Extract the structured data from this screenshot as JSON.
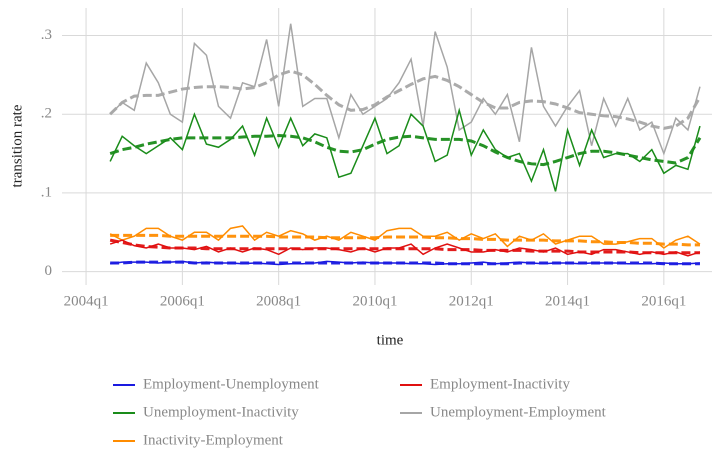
{
  "chart_data": {
    "type": "line",
    "x_label": "time",
    "y_label": "transition rate",
    "x": [
      2004.5,
      2004.75,
      2005,
      2005.25,
      2005.5,
      2005.75,
      2006,
      2006.25,
      2006.5,
      2006.75,
      2007,
      2007.25,
      2007.5,
      2007.75,
      2008,
      2008.25,
      2008.5,
      2008.75,
      2009,
      2009.25,
      2009.5,
      2009.75,
      2010,
      2010.25,
      2010.5,
      2010.75,
      2011,
      2011.25,
      2011.5,
      2011.75,
      2012,
      2012.25,
      2012.5,
      2012.75,
      2013,
      2013.25,
      2013.5,
      2013.75,
      2014,
      2014.25,
      2014.5,
      2014.75,
      2015,
      2015.25,
      2015.5,
      2015.75,
      2016,
      2016.25,
      2016.5,
      2016.75
    ],
    "xlim": [
      2003.5,
      2017
    ],
    "xticks": [
      {
        "value": 2004,
        "label": "2004q1"
      },
      {
        "value": 2006,
        "label": "2006q1"
      },
      {
        "value": 2008,
        "label": "2008q1"
      },
      {
        "value": 2010,
        "label": "2010q1"
      },
      {
        "value": 2012,
        "label": "2012q1"
      },
      {
        "value": 2014,
        "label": "2014q1"
      },
      {
        "value": 2016,
        "label": "2016q1"
      }
    ],
    "ylim": [
      -0.017,
      0.335
    ],
    "yticks": [
      0,
      {
        "value": 0.1,
        "label": ".1"
      },
      {
        "value": 0.2,
        "label": ".2"
      },
      {
        "value": 0.3,
        "label": ".3"
      }
    ],
    "grid": true,
    "legend": "bottom",
    "series": [
      {
        "name": "Employment-Unemployment",
        "color": "#1a1ae0",
        "values": [
          0.01,
          0.012,
          0.012,
          0.012,
          0.011,
          0.012,
          0.013,
          0.011,
          0.012,
          0.011,
          0.011,
          0.01,
          0.011,
          0.01,
          0.009,
          0.01,
          0.01,
          0.011,
          0.013,
          0.012,
          0.011,
          0.012,
          0.011,
          0.011,
          0.011,
          0.01,
          0.01,
          0.009,
          0.01,
          0.01,
          0.011,
          0.012,
          0.01,
          0.011,
          0.012,
          0.011,
          0.01,
          0.011,
          0.011,
          0.01,
          0.011,
          0.011,
          0.011,
          0.01,
          0.01,
          0.01,
          0.011,
          0.01,
          0.01,
          0.011
        ],
        "trend": [
          0.011,
          0.011,
          0.012,
          0.012,
          0.012,
          0.012,
          0.012,
          0.011,
          0.011,
          0.011,
          0.011,
          0.011,
          0.011,
          0.011,
          0.011,
          0.011,
          0.011,
          0.011,
          0.011,
          0.011,
          0.011,
          0.011,
          0.011,
          0.011,
          0.011,
          0.011,
          0.011,
          0.011,
          0.01,
          0.01,
          0.01,
          0.01,
          0.01,
          0.01,
          0.011,
          0.011,
          0.011,
          0.011,
          0.011,
          0.011,
          0.011,
          0.011,
          0.011,
          0.011,
          0.011,
          0.011,
          0.01,
          0.01,
          0.01,
          0.01
        ]
      },
      {
        "name": "Employment-Inactivity",
        "color": "#e01010",
        "values": [
          0.035,
          0.04,
          0.033,
          0.03,
          0.035,
          0.03,
          0.03,
          0.028,
          0.032,
          0.025,
          0.03,
          0.025,
          0.03,
          0.028,
          0.022,
          0.03,
          0.028,
          0.03,
          0.03,
          0.028,
          0.025,
          0.03,
          0.025,
          0.03,
          0.03,
          0.035,
          0.022,
          0.03,
          0.035,
          0.03,
          0.025,
          0.025,
          0.028,
          0.025,
          0.03,
          0.028,
          0.025,
          0.03,
          0.022,
          0.025,
          0.022,
          0.028,
          0.028,
          0.025,
          0.022,
          0.025,
          0.022,
          0.025,
          0.02,
          0.025
        ],
        "trend": [
          0.04,
          0.037,
          0.034,
          0.032,
          0.031,
          0.03,
          0.03,
          0.03,
          0.029,
          0.029,
          0.029,
          0.029,
          0.029,
          0.029,
          0.029,
          0.029,
          0.029,
          0.029,
          0.029,
          0.029,
          0.029,
          0.029,
          0.029,
          0.029,
          0.029,
          0.029,
          0.029,
          0.029,
          0.028,
          0.028,
          0.028,
          0.027,
          0.027,
          0.027,
          0.027,
          0.026,
          0.026,
          0.026,
          0.026,
          0.025,
          0.025,
          0.025,
          0.025,
          0.025,
          0.024,
          0.024,
          0.024,
          0.024,
          0.024,
          0.024
        ]
      },
      {
        "name": "Unemployment-Inactivity",
        "color": "#1a8c1a",
        "values": [
          0.14,
          0.172,
          0.16,
          0.15,
          0.16,
          0.17,
          0.155,
          0.2,
          0.162,
          0.158,
          0.168,
          0.185,
          0.148,
          0.195,
          0.158,
          0.195,
          0.16,
          0.175,
          0.17,
          0.12,
          0.125,
          0.16,
          0.195,
          0.15,
          0.16,
          0.2,
          0.185,
          0.14,
          0.148,
          0.205,
          0.148,
          0.18,
          0.155,
          0.145,
          0.15,
          0.115,
          0.155,
          0.102,
          0.18,
          0.135,
          0.18,
          0.145,
          0.15,
          0.15,
          0.14,
          0.155,
          0.125,
          0.135,
          0.13,
          0.185
        ],
        "trend": [
          0.15,
          0.155,
          0.158,
          0.162,
          0.165,
          0.168,
          0.17,
          0.17,
          0.17,
          0.17,
          0.17,
          0.171,
          0.172,
          0.172,
          0.173,
          0.172,
          0.17,
          0.165,
          0.158,
          0.153,
          0.152,
          0.155,
          0.162,
          0.168,
          0.171,
          0.172,
          0.17,
          0.168,
          0.168,
          0.168,
          0.166,
          0.16,
          0.152,
          0.145,
          0.14,
          0.137,
          0.136,
          0.14,
          0.145,
          0.15,
          0.153,
          0.153,
          0.151,
          0.148,
          0.145,
          0.142,
          0.14,
          0.138,
          0.145,
          0.17
        ]
      },
      {
        "name": "Unemployment-Employment",
        "color": "#a6a6a6",
        "values": [
          0.2,
          0.215,
          0.205,
          0.265,
          0.24,
          0.2,
          0.19,
          0.29,
          0.275,
          0.21,
          0.195,
          0.24,
          0.235,
          0.295,
          0.21,
          0.315,
          0.21,
          0.22,
          0.22,
          0.17,
          0.225,
          0.2,
          0.21,
          0.22,
          0.24,
          0.27,
          0.185,
          0.305,
          0.26,
          0.18,
          0.19,
          0.22,
          0.2,
          0.225,
          0.165,
          0.285,
          0.21,
          0.185,
          0.21,
          0.23,
          0.16,
          0.22,
          0.185,
          0.22,
          0.18,
          0.19,
          0.15,
          0.195,
          0.18,
          0.235
        ],
        "trend": [
          0.2,
          0.215,
          0.223,
          0.224,
          0.224,
          0.228,
          0.232,
          0.234,
          0.235,
          0.235,
          0.234,
          0.232,
          0.234,
          0.24,
          0.25,
          0.255,
          0.25,
          0.238,
          0.224,
          0.212,
          0.205,
          0.206,
          0.212,
          0.222,
          0.23,
          0.238,
          0.245,
          0.248,
          0.243,
          0.235,
          0.225,
          0.215,
          0.208,
          0.208,
          0.215,
          0.217,
          0.216,
          0.213,
          0.208,
          0.202,
          0.2,
          0.198,
          0.197,
          0.194,
          0.19,
          0.185,
          0.182,
          0.185,
          0.195,
          0.222
        ]
      },
      {
        "name": "Inactivity-Employment",
        "color": "#ff8c00",
        "values": [
          0.048,
          0.04,
          0.045,
          0.055,
          0.055,
          0.045,
          0.04,
          0.05,
          0.05,
          0.04,
          0.055,
          0.058,
          0.04,
          0.05,
          0.045,
          0.052,
          0.048,
          0.04,
          0.045,
          0.04,
          0.05,
          0.045,
          0.04,
          0.052,
          0.055,
          0.055,
          0.045,
          0.045,
          0.05,
          0.04,
          0.048,
          0.042,
          0.048,
          0.032,
          0.045,
          0.04,
          0.048,
          0.035,
          0.04,
          0.045,
          0.045,
          0.035,
          0.035,
          0.038,
          0.042,
          0.042,
          0.03,
          0.04,
          0.045,
          0.035
        ],
        "trend": [
          0.046,
          0.046,
          0.046,
          0.046,
          0.046,
          0.045,
          0.045,
          0.045,
          0.045,
          0.045,
          0.045,
          0.045,
          0.045,
          0.045,
          0.044,
          0.044,
          0.044,
          0.044,
          0.043,
          0.043,
          0.043,
          0.043,
          0.043,
          0.044,
          0.044,
          0.044,
          0.044,
          0.043,
          0.043,
          0.042,
          0.042,
          0.041,
          0.041,
          0.04,
          0.04,
          0.04,
          0.04,
          0.039,
          0.039,
          0.039,
          0.038,
          0.038,
          0.037,
          0.037,
          0.036,
          0.036,
          0.035,
          0.035,
          0.034,
          0.034
        ]
      }
    ]
  }
}
